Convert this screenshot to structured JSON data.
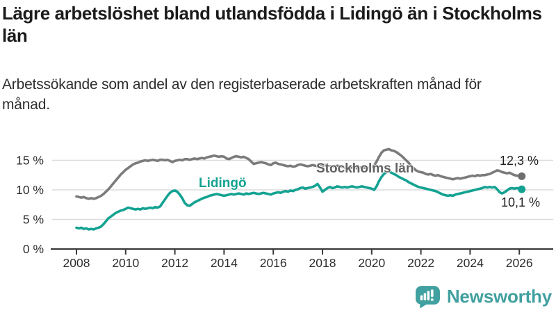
{
  "header": {
    "title": "Lägre arbetslöshet bland utlandsfödda i Lidingö än i Stockholms län",
    "subtitle": "Arbetssökande som andel av den registerbaserade arbetskraften månad för månad."
  },
  "footer": {
    "brand": "Newsworthy",
    "brand_color": "#41A0A0",
    "logo_icon": "speech-bubble-with-bar-chart-and-exclamation"
  },
  "chart_data": {
    "type": "line",
    "title": "Lägre arbetslöshet bland utlandsfödda i Lidingö än i Stockholms län",
    "subtitle": "Arbetssökande som andel av den registerbaserade arbetskraften månad för månad.",
    "xlabel": "",
    "ylabel": "",
    "unit": "%",
    "grid": "horizontal",
    "legend_position": "inline-labels",
    "xlim": [
      2007.3,
      2027.2
    ],
    "ylim": [
      0,
      17.5
    ],
    "x_axis": {
      "ticks": [
        2008,
        2010,
        2012,
        2014,
        2016,
        2018,
        2020,
        2022,
        2024,
        2026
      ]
    },
    "y_axis": {
      "ticks": [
        "0 %",
        "5 %",
        "10 %",
        "15 %"
      ],
      "tick_values": [
        0,
        5,
        10,
        15
      ]
    },
    "style": {
      "grid_color": "#DCDCDC",
      "axis_color": "#3A3A3A",
      "axis_text_color": "#2F2F2F",
      "value_label_color": "#1F1F1F"
    },
    "series": [
      {
        "name": "Stockholms län",
        "color": "#7B7B7B",
        "dot_color": "#6E6E6E",
        "label_color": "#616161",
        "start": 2008.0,
        "step": 0.1,
        "end_label": "12,3 %",
        "end_value": 12.3,
        "values": [
          8.9,
          8.8,
          8.7,
          8.8,
          8.6,
          8.5,
          8.6,
          8.5,
          8.6,
          8.8,
          9.0,
          9.3,
          9.7,
          10.1,
          10.6,
          11.1,
          11.6,
          12.1,
          12.6,
          13.0,
          13.4,
          13.7,
          14.0,
          14.3,
          14.5,
          14.6,
          14.8,
          14.9,
          15.0,
          14.9,
          15.0,
          15.1,
          15.0,
          14.9,
          15.1,
          15.1,
          15.0,
          15.1,
          14.9,
          14.7,
          14.9,
          15.0,
          15.1,
          15.0,
          15.2,
          15.2,
          15.1,
          15.2,
          15.3,
          15.2,
          15.3,
          15.4,
          15.3,
          15.5,
          15.6,
          15.7,
          15.8,
          15.7,
          15.6,
          15.7,
          15.6,
          15.3,
          15.2,
          15.4,
          15.6,
          15.7,
          15.6,
          15.5,
          15.6,
          15.4,
          15.2,
          14.8,
          14.4,
          14.5,
          14.6,
          14.7,
          14.6,
          14.5,
          14.3,
          14.2,
          14.5,
          14.6,
          14.4,
          14.3,
          14.2,
          14.1,
          14.0,
          14.1,
          13.9,
          14.0,
          14.2,
          14.3,
          14.2,
          14.1,
          14.0,
          14.1,
          14.2,
          14.1,
          14.0,
          13.9,
          14.1,
          14.2,
          14.1,
          14.0,
          13.9,
          14.0,
          14.1,
          14.0,
          13.9,
          13.8,
          13.9,
          13.8,
          13.8,
          13.7,
          13.7,
          13.8,
          13.7,
          13.8,
          13.7,
          13.8,
          13.9,
          14.1,
          14.8,
          15.6,
          16.3,
          16.7,
          16.8,
          16.9,
          16.7,
          16.6,
          16.4,
          16.1,
          15.8,
          15.4,
          15.0,
          14.6,
          14.1,
          13.7,
          13.3,
          13.1,
          13.0,
          12.9,
          12.7,
          12.6,
          12.7,
          12.5,
          12.4,
          12.5,
          12.3,
          12.2,
          12.1,
          12.0,
          11.9,
          11.8,
          11.9,
          12.0,
          11.9,
          12.0,
          12.1,
          12.2,
          12.3,
          12.4,
          12.3,
          12.5,
          12.4,
          12.5,
          12.5,
          12.6,
          12.7,
          12.9,
          13.1,
          13.3,
          13.2,
          13.0,
          12.9,
          12.8,
          12.9,
          12.7,
          12.5,
          12.4,
          12.4,
          12.3
        ]
      },
      {
        "name": "Lidingö",
        "color": "#14A292",
        "dot_color": "#14A292",
        "label_color": "#14A292",
        "start": 2008.0,
        "step": 0.1,
        "end_label": "10,1 %",
        "end_value": 10.1,
        "values": [
          3.6,
          3.5,
          3.6,
          3.4,
          3.5,
          3.3,
          3.4,
          3.3,
          3.5,
          3.6,
          3.8,
          4.2,
          4.7,
          5.2,
          5.5,
          5.8,
          6.1,
          6.3,
          6.5,
          6.6,
          6.8,
          7.0,
          6.9,
          6.8,
          6.7,
          6.8,
          6.7,
          6.9,
          6.8,
          6.9,
          7.0,
          6.9,
          7.1,
          7.0,
          7.2,
          7.8,
          8.4,
          9.0,
          9.5,
          9.8,
          9.9,
          9.7,
          9.2,
          8.6,
          7.8,
          7.4,
          7.3,
          7.6,
          7.9,
          8.1,
          8.3,
          8.5,
          8.7,
          8.8,
          9.0,
          9.1,
          9.2,
          9.3,
          9.2,
          9.1,
          9.0,
          9.1,
          9.2,
          9.3,
          9.2,
          9.3,
          9.4,
          9.3,
          9.2,
          9.4,
          9.3,
          9.4,
          9.5,
          9.4,
          9.3,
          9.4,
          9.5,
          9.4,
          9.3,
          9.2,
          9.4,
          9.5,
          9.6,
          9.5,
          9.7,
          9.8,
          9.7,
          9.9,
          9.8,
          10.0,
          10.1,
          10.3,
          10.4,
          10.2,
          10.3,
          10.4,
          10.5,
          10.7,
          11.0,
          10.4,
          9.7,
          10.0,
          10.3,
          10.5,
          10.3,
          10.4,
          10.6,
          10.5,
          10.4,
          10.5,
          10.4,
          10.5,
          10.6,
          10.5,
          10.4,
          10.5,
          10.6,
          10.5,
          10.4,
          10.3,
          10.2,
          10.0,
          10.6,
          11.5,
          12.2,
          12.7,
          13.0,
          13.1,
          12.9,
          12.7,
          12.5,
          12.2,
          12.0,
          11.8,
          11.6,
          11.3,
          11.1,
          10.9,
          10.7,
          10.5,
          10.4,
          10.3,
          10.2,
          10.1,
          10.0,
          9.9,
          9.8,
          9.6,
          9.4,
          9.2,
          9.1,
          9.0,
          9.1,
          9.0,
          9.2,
          9.3,
          9.4,
          9.5,
          9.6,
          9.7,
          9.8,
          9.9,
          10.0,
          10.1,
          10.2,
          10.3,
          10.5,
          10.4,
          10.5,
          10.4,
          10.5,
          10.1,
          9.6,
          9.4,
          9.6,
          9.9,
          10.2,
          10.3,
          10.2,
          10.3,
          10.2,
          10.1
        ]
      }
    ]
  }
}
